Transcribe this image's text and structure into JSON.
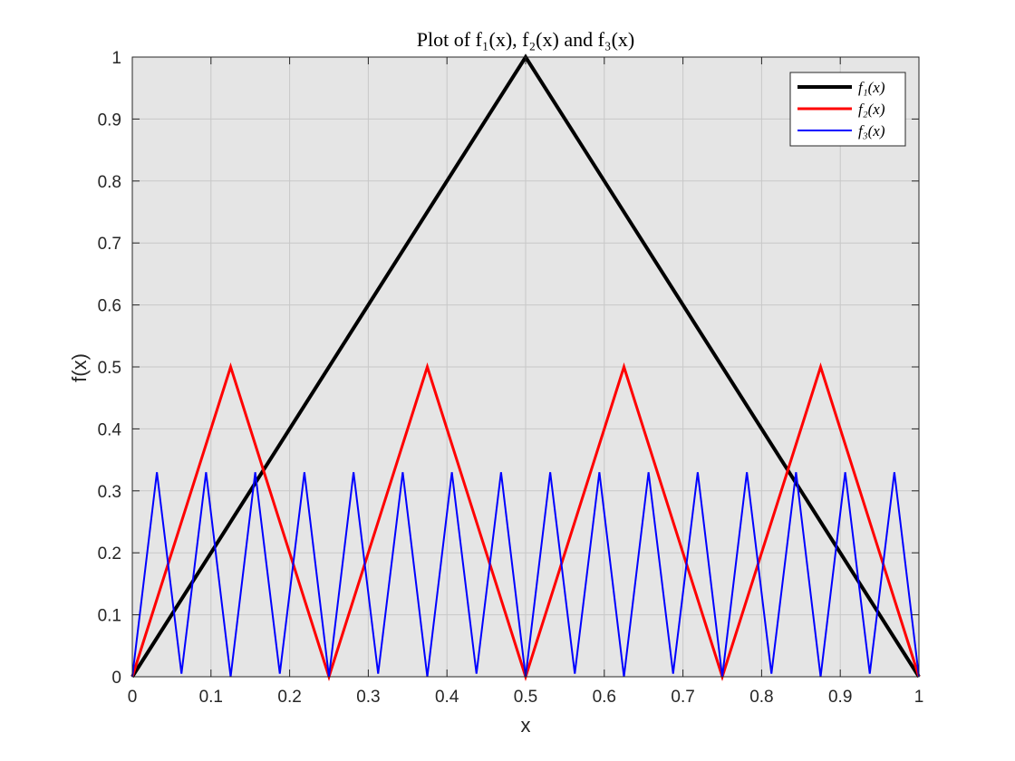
{
  "chart_data": {
    "type": "line",
    "title": "Plot of f₁(x), f₂(x) and f₃(x)",
    "xlabel": "x",
    "ylabel": "f(x)",
    "xlim": [
      0,
      1
    ],
    "ylim": [
      0,
      1
    ],
    "grid": true,
    "legend_position": "top-right",
    "x_ticks": [
      "0",
      "0.1",
      "0.2",
      "0.3",
      "0.4",
      "0.5",
      "0.6",
      "0.7",
      "0.8",
      "0.9",
      "1"
    ],
    "y_ticks": [
      "0",
      "0.1",
      "0.2",
      "0.3",
      "0.4",
      "0.5",
      "0.6",
      "0.7",
      "0.8",
      "0.9",
      "1"
    ],
    "colors": {
      "background": "#e5e5e5",
      "grid": "#c8c8c8",
      "axis": "#262626"
    },
    "series": [
      {
        "name": "f₁(x)",
        "color": "#000000",
        "x": [
          0,
          0.5,
          1
        ],
        "y": [
          0,
          1,
          0
        ]
      },
      {
        "name": "f₂(x)",
        "color": "#ff0000",
        "x": [
          0,
          0.125,
          0.25,
          0.375,
          0.5,
          0.625,
          0.75,
          0.875,
          1
        ],
        "y": [
          0,
          0.5,
          0,
          0.5,
          0,
          0.5,
          0,
          0.5,
          0
        ]
      },
      {
        "name": "f₃(x)",
        "color": "#0000ff",
        "x": [
          0,
          0.03125,
          0.0625,
          0.09375,
          0.125,
          0.15625,
          0.1875,
          0.21875,
          0.25,
          0.28125,
          0.3125,
          0.34375,
          0.375,
          0.40625,
          0.4375,
          0.46875,
          0.5,
          0.53125,
          0.5625,
          0.59375,
          0.625,
          0.65625,
          0.6875,
          0.71875,
          0.75,
          0.78125,
          0.8125,
          0.84375,
          0.875,
          0.90625,
          0.9375,
          0.96875,
          1
        ],
        "y": [
          0,
          0.33,
          0.005,
          0.33,
          0,
          0.33,
          0.005,
          0.33,
          0,
          0.33,
          0.005,
          0.33,
          0,
          0.33,
          0.005,
          0.33,
          0,
          0.33,
          0.005,
          0.33,
          0,
          0.33,
          0.005,
          0.33,
          0,
          0.33,
          0.005,
          0.33,
          0,
          0.33,
          0.005,
          0.33,
          0
        ]
      }
    ]
  }
}
